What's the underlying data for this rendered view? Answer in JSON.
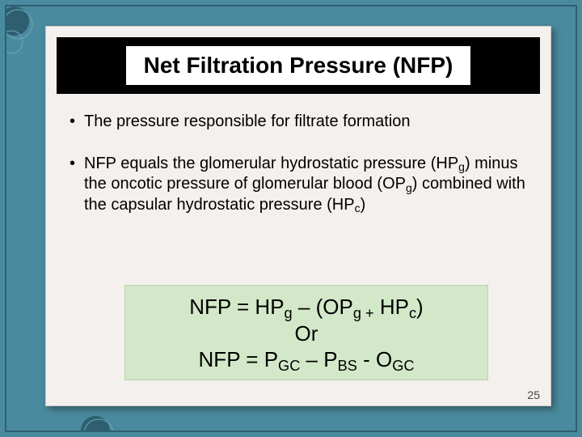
{
  "title": "Net Filtration Pressure (NFP)",
  "bullets": [
    {
      "html": "The pressure responsible for filtrate formation"
    },
    {
      "html": "NFP equals the glomerular hydrostatic pressure (HP<sub>g</sub>) minus the oncotic pressure of glomerular blood (OP<sub>g</sub>) combined with the capsular hydrostatic pressure (HP<sub>c</sub>)"
    }
  ],
  "formula": {
    "line1_html": "NFP = HP<sub>g</sub> – (OP<sub>g +</sub> HP<sub>c</sub>)",
    "line2": "Or",
    "line3_html": "NFP = P<sub>GC</sub> – P<sub>BS</sub> - O<sub>GC</sub>",
    "background_color": "#d3e8c8"
  },
  "page_number": "25",
  "theme": {
    "slide_bg": "#4a8a9e",
    "card_bg": "#f4f0ee",
    "title_band_bg": "#000000",
    "title_text_bg": "#ffffff",
    "text_color": "#000000",
    "title_fontsize": 28,
    "body_fontsize": 20,
    "formula_fontsize": 26
  }
}
